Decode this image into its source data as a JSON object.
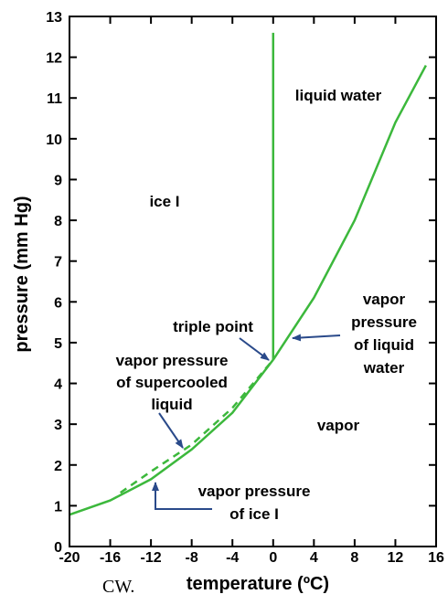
{
  "chart_data": {
    "type": "line",
    "xlabel": "temperature (ºC)",
    "ylabel": "pressure (mm Hg)",
    "credit": "CW.",
    "xlim": [
      -20,
      16
    ],
    "xticks": [
      -20,
      -16,
      -12,
      -8,
      -4,
      0,
      4,
      8,
      12,
      16
    ],
    "ylim": [
      0,
      13
    ],
    "yticks": [
      0,
      1,
      2,
      3,
      4,
      5,
      6,
      7,
      8,
      9,
      10,
      11,
      12,
      13
    ],
    "series": [
      {
        "color": "#3cb83c",
        "dash": false,
        "x": [
          -20,
          -16,
          -12,
          -8,
          -4,
          0
        ],
        "values": [
          0.78,
          1.13,
          1.65,
          2.38,
          3.28,
          4.58
        ]
      },
      {
        "color": "#3cb83c",
        "dash": false,
        "x": [
          0,
          4,
          8,
          12,
          15
        ],
        "values": [
          4.58,
          6.1,
          8.0,
          10.4,
          11.8
        ]
      },
      {
        "color": "#3cb83c",
        "dash": true,
        "x": [
          -15,
          -12,
          -8,
          -4,
          0
        ],
        "values": [
          1.32,
          1.84,
          2.5,
          3.4,
          4.58
        ]
      },
      {
        "color": "#3cb83c",
        "dash": false,
        "x": [
          0,
          0
        ],
        "values": [
          4.58,
          12.6
        ]
      }
    ],
    "annotations": [
      {
        "lines": [
          "liquid water"
        ]
      },
      {
        "lines": [
          "ice I"
        ]
      },
      {
        "lines": [
          "triple point"
        ]
      },
      {
        "lines": [
          "vapor",
          "pressure",
          "of liquid",
          "water"
        ]
      },
      {
        "lines": [
          "vapor pressure",
          "of supercooled",
          "liquid"
        ]
      },
      {
        "lines": [
          "vapor"
        ]
      },
      {
        "lines": [
          "vapor pressure",
          "of ice I"
        ]
      }
    ]
  }
}
